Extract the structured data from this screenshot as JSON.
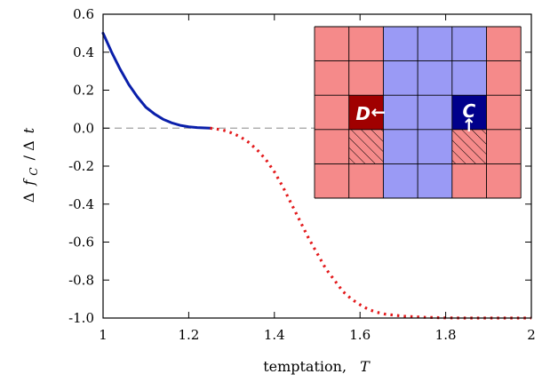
{
  "chart_data": {
    "type": "line",
    "xlabel": "temptation,",
    "xlabel_symbol": "T",
    "ylabel_delta": "Δ",
    "ylabel_f": "f",
    "ylabel_sub": "C",
    "ylabel_rest": "/ Δ",
    "ylabel_t": "t",
    "xlim": [
      1,
      2
    ],
    "ylim": [
      -1.0,
      0.6
    ],
    "x_ticks": [
      1,
      1.2,
      1.4,
      1.6,
      1.8,
      2
    ],
    "x_tick_labels": [
      "1",
      "1.2",
      "1.4",
      "1.6",
      "1.8",
      "2"
    ],
    "y_ticks": [
      0.6,
      0.4,
      0.2,
      0.0,
      -0.2,
      -0.4,
      -0.6,
      -0.8,
      -1.0
    ],
    "y_tick_labels": [
      "0.6",
      "0.4",
      "0.2",
      "0.0",
      "-0.2",
      "-0.4",
      "-0.6",
      "-0.8",
      "-1.0"
    ],
    "reference_line": {
      "y": 0.0,
      "style": "dashed",
      "color": "#a0a0a0",
      "x_range": [
        1,
        1.5
      ]
    },
    "series": [
      {
        "style": "solid",
        "color": "#0a1faa",
        "x": [
          1.0,
          1.02,
          1.04,
          1.06,
          1.08,
          1.1,
          1.12,
          1.14,
          1.16,
          1.18,
          1.2,
          1.22,
          1.25
        ],
        "y": [
          0.5,
          0.4,
          0.31,
          0.23,
          0.165,
          0.11,
          0.075,
          0.047,
          0.028,
          0.015,
          0.007,
          0.003,
          0.0
        ]
      },
      {
        "style": "dotted",
        "color": "#e31a1c",
        "x": [
          1.25,
          1.28,
          1.3,
          1.32,
          1.34,
          1.36,
          1.38,
          1.4,
          1.42,
          1.44,
          1.46,
          1.48,
          1.5,
          1.52,
          1.54,
          1.56,
          1.58,
          1.6,
          1.62,
          1.64,
          1.66,
          1.7,
          1.75,
          1.8,
          1.85,
          1.9,
          2.0
        ],
        "y": [
          0.0,
          -0.01,
          -0.025,
          -0.045,
          -0.075,
          -0.115,
          -0.165,
          -0.23,
          -0.31,
          -0.4,
          -0.49,
          -0.58,
          -0.66,
          -0.74,
          -0.8,
          -0.86,
          -0.9,
          -0.93,
          -0.955,
          -0.97,
          -0.98,
          -0.99,
          -0.996,
          -0.999,
          -1.0,
          -1.0,
          -1.0
        ]
      }
    ],
    "inset": {
      "grid_size": 6,
      "cells": [
        [
          "r",
          "r",
          "b",
          "b",
          "b",
          "r"
        ],
        [
          "r",
          "r",
          "b",
          "b",
          "b",
          "r"
        ],
        [
          "r",
          "D",
          "b",
          "b",
          "C",
          "r"
        ],
        [
          "r",
          "rh",
          "b",
          "b",
          "rh",
          "r"
        ],
        [
          "r",
          "r",
          "b",
          "b",
          "r",
          "r"
        ]
      ],
      "colors": {
        "light_red": "#f58a8a",
        "light_blue": "#9a9af5",
        "dark_red": "#a00000",
        "dark_blue": "#00008b"
      },
      "label_d": "D",
      "label_c": "C",
      "arrow_d": "←",
      "arrow_c": "↑"
    }
  }
}
